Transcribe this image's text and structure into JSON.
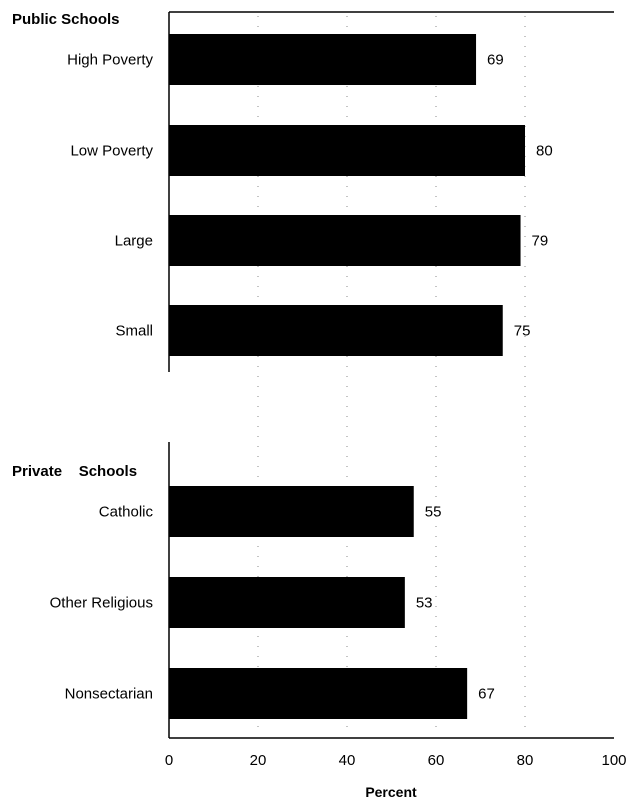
{
  "chart_data": {
    "type": "bar",
    "orientation": "horizontal",
    "xlabel": "Percent",
    "xlim": [
      0,
      100
    ],
    "x_ticks": [
      "0",
      "20",
      "40",
      "60",
      "80",
      "100"
    ],
    "grid": "dotted vertical",
    "bar_color": "#000000",
    "groups": [
      {
        "label": "Public Schools",
        "categories": [
          "High Poverty",
          "Low Poverty",
          "Large",
          "Small"
        ],
        "values": [
          69,
          80,
          79,
          75
        ]
      },
      {
        "label": "Private    Schools",
        "categories": [
          "Catholic",
          "Other Religious",
          "Nonsectarian"
        ],
        "values": [
          55,
          53,
          67
        ]
      }
    ]
  }
}
